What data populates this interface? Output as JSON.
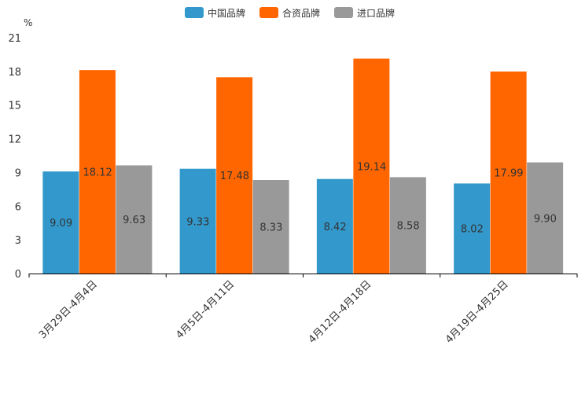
{
  "chart_data": {
    "type": "bar",
    "title": "",
    "xlabel": "",
    "ylabel": "%",
    "ylim": [
      0,
      21
    ],
    "yticks": [
      0,
      3,
      6,
      9,
      12,
      15,
      18,
      21
    ],
    "grid": false,
    "legend_position": "top-center",
    "categories": [
      "3月29日-4月4日",
      "4月5日-4月11日",
      "4月12日-4月18日",
      "4月19日-4月25日"
    ],
    "series": [
      {
        "name": "中国品牌",
        "color": "#3399cc",
        "values": [
          9.09,
          9.33,
          8.42,
          8.02
        ]
      },
      {
        "name": "合资品牌",
        "color": "#ff6600",
        "values": [
          18.12,
          17.48,
          19.14,
          17.99
        ]
      },
      {
        "name": "进口品牌",
        "color": "#999999",
        "values": [
          9.63,
          8.33,
          8.58,
          9.9
        ]
      }
    ]
  }
}
